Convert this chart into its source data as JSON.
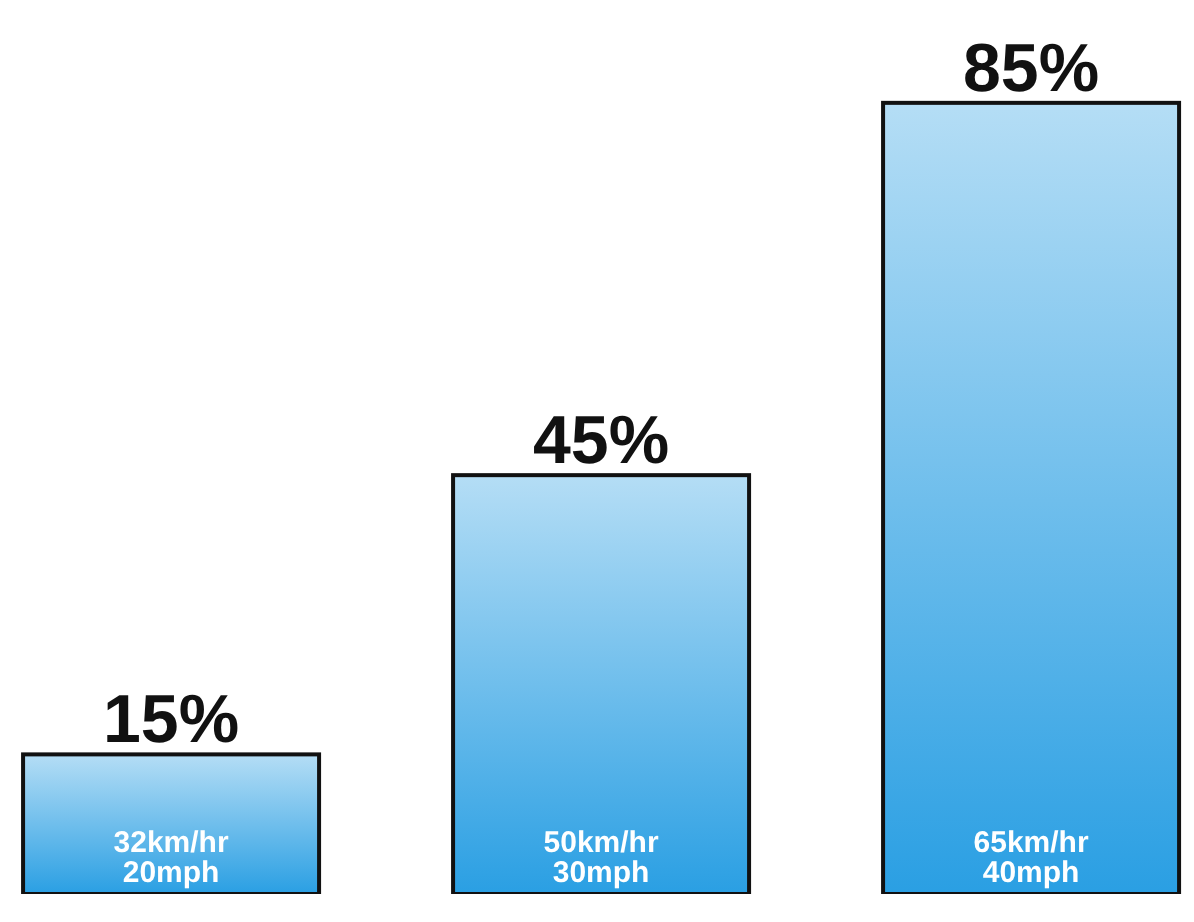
{
  "chart_data": {
    "type": "bar",
    "categories": [
      "32km/hr\n20mph",
      "50km/hr\n30mph",
      "65km/hr\n40mph"
    ],
    "values": [
      15,
      45,
      85
    ],
    "value_labels": [
      "15%",
      "45%",
      "85%"
    ],
    "color": "#2a9fe3"
  }
}
